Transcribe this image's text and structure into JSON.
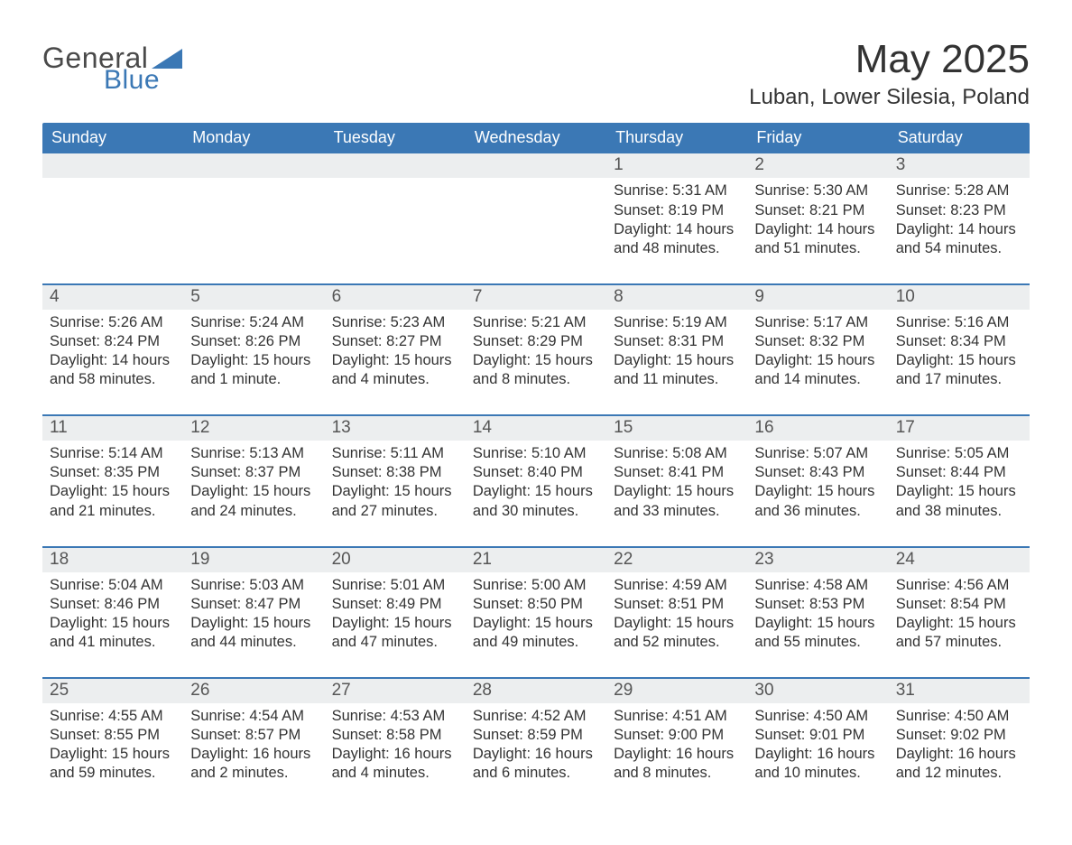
{
  "brand": {
    "word1": "General",
    "word2": "Blue",
    "triangle_color": "#3b78b5",
    "word1_color": "#4a4a4a",
    "word2_color": "#3b78b5"
  },
  "header": {
    "title": "May 2025",
    "subtitle": "Luban, Lower Silesia, Poland"
  },
  "colors": {
    "header_bg": "#3b78b5",
    "header_text": "#ffffff",
    "daynum_bg": "#eceeef",
    "daynum_color": "#555555",
    "body_text": "#333333",
    "week_divider": "#3b78b5",
    "page_bg": "#ffffff"
  },
  "typography": {
    "title_fontsize": 44,
    "subtitle_fontsize": 24,
    "weekday_fontsize": 18,
    "daynum_fontsize": 19,
    "body_fontsize": 16.5,
    "font_family": "Helvetica Neue, Arial, sans-serif"
  },
  "weekdays": [
    "Sunday",
    "Monday",
    "Tuesday",
    "Wednesday",
    "Thursday",
    "Friday",
    "Saturday"
  ],
  "weeks": [
    [
      null,
      null,
      null,
      null,
      {
        "n": "1",
        "sunrise": "Sunrise: 5:31 AM",
        "sunset": "Sunset: 8:19 PM",
        "daylight": "Daylight: 14 hours and 48 minutes."
      },
      {
        "n": "2",
        "sunrise": "Sunrise: 5:30 AM",
        "sunset": "Sunset: 8:21 PM",
        "daylight": "Daylight: 14 hours and 51 minutes."
      },
      {
        "n": "3",
        "sunrise": "Sunrise: 5:28 AM",
        "sunset": "Sunset: 8:23 PM",
        "daylight": "Daylight: 14 hours and 54 minutes."
      }
    ],
    [
      {
        "n": "4",
        "sunrise": "Sunrise: 5:26 AM",
        "sunset": "Sunset: 8:24 PM",
        "daylight": "Daylight: 14 hours and 58 minutes."
      },
      {
        "n": "5",
        "sunrise": "Sunrise: 5:24 AM",
        "sunset": "Sunset: 8:26 PM",
        "daylight": "Daylight: 15 hours and 1 minute."
      },
      {
        "n": "6",
        "sunrise": "Sunrise: 5:23 AM",
        "sunset": "Sunset: 8:27 PM",
        "daylight": "Daylight: 15 hours and 4 minutes."
      },
      {
        "n": "7",
        "sunrise": "Sunrise: 5:21 AM",
        "sunset": "Sunset: 8:29 PM",
        "daylight": "Daylight: 15 hours and 8 minutes."
      },
      {
        "n": "8",
        "sunrise": "Sunrise: 5:19 AM",
        "sunset": "Sunset: 8:31 PM",
        "daylight": "Daylight: 15 hours and 11 minutes."
      },
      {
        "n": "9",
        "sunrise": "Sunrise: 5:17 AM",
        "sunset": "Sunset: 8:32 PM",
        "daylight": "Daylight: 15 hours and 14 minutes."
      },
      {
        "n": "10",
        "sunrise": "Sunrise: 5:16 AM",
        "sunset": "Sunset: 8:34 PM",
        "daylight": "Daylight: 15 hours and 17 minutes."
      }
    ],
    [
      {
        "n": "11",
        "sunrise": "Sunrise: 5:14 AM",
        "sunset": "Sunset: 8:35 PM",
        "daylight": "Daylight: 15 hours and 21 minutes."
      },
      {
        "n": "12",
        "sunrise": "Sunrise: 5:13 AM",
        "sunset": "Sunset: 8:37 PM",
        "daylight": "Daylight: 15 hours and 24 minutes."
      },
      {
        "n": "13",
        "sunrise": "Sunrise: 5:11 AM",
        "sunset": "Sunset: 8:38 PM",
        "daylight": "Daylight: 15 hours and 27 minutes."
      },
      {
        "n": "14",
        "sunrise": "Sunrise: 5:10 AM",
        "sunset": "Sunset: 8:40 PM",
        "daylight": "Daylight: 15 hours and 30 minutes."
      },
      {
        "n": "15",
        "sunrise": "Sunrise: 5:08 AM",
        "sunset": "Sunset: 8:41 PM",
        "daylight": "Daylight: 15 hours and 33 minutes."
      },
      {
        "n": "16",
        "sunrise": "Sunrise: 5:07 AM",
        "sunset": "Sunset: 8:43 PM",
        "daylight": "Daylight: 15 hours and 36 minutes."
      },
      {
        "n": "17",
        "sunrise": "Sunrise: 5:05 AM",
        "sunset": "Sunset: 8:44 PM",
        "daylight": "Daylight: 15 hours and 38 minutes."
      }
    ],
    [
      {
        "n": "18",
        "sunrise": "Sunrise: 5:04 AM",
        "sunset": "Sunset: 8:46 PM",
        "daylight": "Daylight: 15 hours and 41 minutes."
      },
      {
        "n": "19",
        "sunrise": "Sunrise: 5:03 AM",
        "sunset": "Sunset: 8:47 PM",
        "daylight": "Daylight: 15 hours and 44 minutes."
      },
      {
        "n": "20",
        "sunrise": "Sunrise: 5:01 AM",
        "sunset": "Sunset: 8:49 PM",
        "daylight": "Daylight: 15 hours and 47 minutes."
      },
      {
        "n": "21",
        "sunrise": "Sunrise: 5:00 AM",
        "sunset": "Sunset: 8:50 PM",
        "daylight": "Daylight: 15 hours and 49 minutes."
      },
      {
        "n": "22",
        "sunrise": "Sunrise: 4:59 AM",
        "sunset": "Sunset: 8:51 PM",
        "daylight": "Daylight: 15 hours and 52 minutes."
      },
      {
        "n": "23",
        "sunrise": "Sunrise: 4:58 AM",
        "sunset": "Sunset: 8:53 PM",
        "daylight": "Daylight: 15 hours and 55 minutes."
      },
      {
        "n": "24",
        "sunrise": "Sunrise: 4:56 AM",
        "sunset": "Sunset: 8:54 PM",
        "daylight": "Daylight: 15 hours and 57 minutes."
      }
    ],
    [
      {
        "n": "25",
        "sunrise": "Sunrise: 4:55 AM",
        "sunset": "Sunset: 8:55 PM",
        "daylight": "Daylight: 15 hours and 59 minutes."
      },
      {
        "n": "26",
        "sunrise": "Sunrise: 4:54 AM",
        "sunset": "Sunset: 8:57 PM",
        "daylight": "Daylight: 16 hours and 2 minutes."
      },
      {
        "n": "27",
        "sunrise": "Sunrise: 4:53 AM",
        "sunset": "Sunset: 8:58 PM",
        "daylight": "Daylight: 16 hours and 4 minutes."
      },
      {
        "n": "28",
        "sunrise": "Sunrise: 4:52 AM",
        "sunset": "Sunset: 8:59 PM",
        "daylight": "Daylight: 16 hours and 6 minutes."
      },
      {
        "n": "29",
        "sunrise": "Sunrise: 4:51 AM",
        "sunset": "Sunset: 9:00 PM",
        "daylight": "Daylight: 16 hours and 8 minutes."
      },
      {
        "n": "30",
        "sunrise": "Sunrise: 4:50 AM",
        "sunset": "Sunset: 9:01 PM",
        "daylight": "Daylight: 16 hours and 10 minutes."
      },
      {
        "n": "31",
        "sunrise": "Sunrise: 4:50 AM",
        "sunset": "Sunset: 9:02 PM",
        "daylight": "Daylight: 16 hours and 12 minutes."
      }
    ]
  ]
}
